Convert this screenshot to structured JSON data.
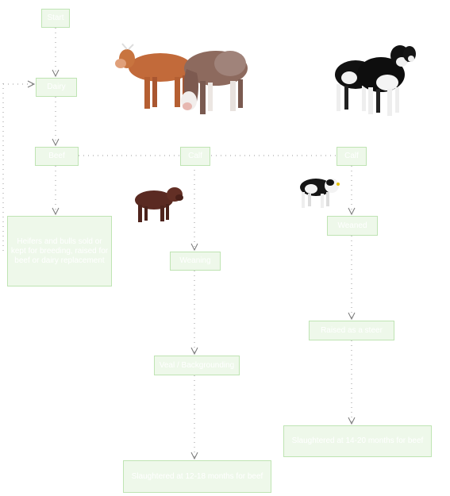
{
  "nodes": {
    "top": "Start",
    "second": "Dairy",
    "left_row": "Beef",
    "mid_row": "Calf",
    "right_row": "Calf",
    "left_desc": "Heifers and bulls sold or kept for breeding, raised for beef or dairy replacement",
    "mid_1": "Weaning",
    "mid_2": "Veal / Backgrounding",
    "mid_3": "Slaughtered at 12-18 months for beef",
    "right_1": "Weaned",
    "right_2": "Raised as a steer",
    "right_3": "Slaughtered at 14-20 months for beef"
  },
  "images": {
    "beef_pair": "two-brown-cows",
    "dairy_pair": "black-white-holstein-cows",
    "beef_calf": "brown-calf",
    "dairy_calf": "holstein-calf"
  }
}
